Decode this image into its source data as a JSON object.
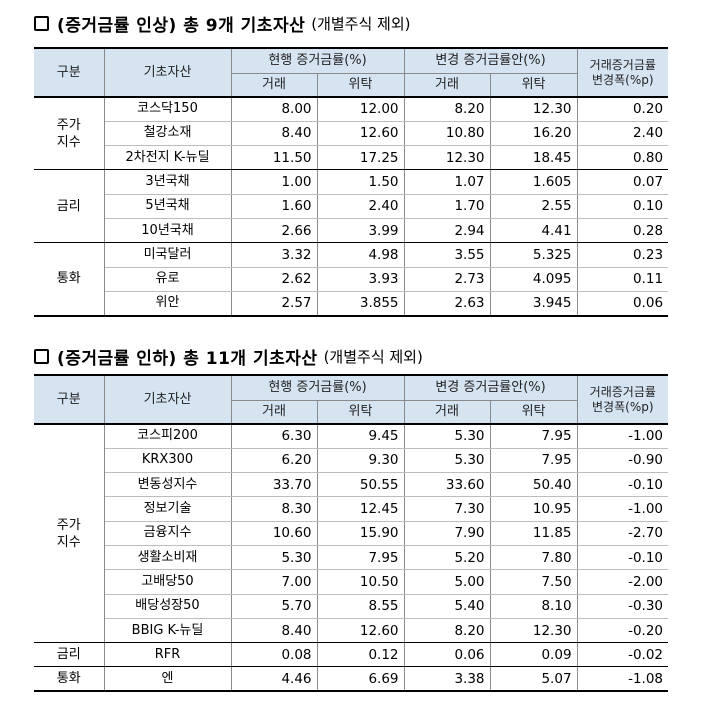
{
  "sections": [
    {
      "title": "(증거금률 인상) 총 9개 기초자산",
      "note": "(개별주식 제외)",
      "header": {
        "group": "구분",
        "asset": "기초자산",
        "current": "현행 증거금률(%)",
        "proposed": "변경 증거금률안(%)",
        "trade": "거래",
        "consign": "위탁",
        "change": "거래증거금률\n변경폭(%p)"
      },
      "groups": [
        {
          "name": "주가\n지수",
          "rows": [
            {
              "asset": "코스닥150",
              "cur_trade": "8.00",
              "cur_consign": "12.00",
              "new_trade": "8.20",
              "new_consign": "12.30",
              "change": "0.20"
            },
            {
              "asset": "철강소재",
              "cur_trade": "8.40",
              "cur_consign": "12.60",
              "new_trade": "10.80",
              "new_consign": "16.20",
              "change": "2.40"
            },
            {
              "asset": "2차전지 K-뉴딜",
              "cur_trade": "11.50",
              "cur_consign": "17.25",
              "new_trade": "12.30",
              "new_consign": "18.45",
              "change": "0.80"
            }
          ]
        },
        {
          "name": "금리",
          "rows": [
            {
              "asset": "3년국채",
              "cur_trade": "1.00",
              "cur_consign": "1.50",
              "new_trade": "1.07",
              "new_consign": "1.605",
              "change": "0.07"
            },
            {
              "asset": "5년국채",
              "cur_trade": "1.60",
              "cur_consign": "2.40",
              "new_trade": "1.70",
              "new_consign": "2.55",
              "change": "0.10"
            },
            {
              "asset": "10년국채",
              "cur_trade": "2.66",
              "cur_consign": "3.99",
              "new_trade": "2.94",
              "new_consign": "4.41",
              "change": "0.28"
            }
          ]
        },
        {
          "name": "통화",
          "rows": [
            {
              "asset": "미국달러",
              "cur_trade": "3.32",
              "cur_consign": "4.98",
              "new_trade": "3.55",
              "new_consign": "5.325",
              "change": "0.23"
            },
            {
              "asset": "유로",
              "cur_trade": "2.62",
              "cur_consign": "3.93",
              "new_trade": "2.73",
              "new_consign": "4.095",
              "change": "0.11"
            },
            {
              "asset": "위안",
              "cur_trade": "2.57",
              "cur_consign": "3.855",
              "new_trade": "2.63",
              "new_consign": "3.945",
              "change": "0.06"
            }
          ]
        }
      ]
    },
    {
      "title": "(증거금률 인하) 총 11개 기초자산",
      "note": "(개별주식 제외)",
      "header": {
        "group": "구분",
        "asset": "기초자산",
        "current": "현행 증거금률(%)",
        "proposed": "변경 증거금률안(%)",
        "trade": "거래",
        "consign": "위탁",
        "change": "거래증거금률\n변경폭(%p)"
      },
      "groups": [
        {
          "name": "주가\n지수",
          "rows": [
            {
              "asset": "코스피200",
              "cur_trade": "6.30",
              "cur_consign": "9.45",
              "new_trade": "5.30",
              "new_consign": "7.95",
              "change": "-1.00"
            },
            {
              "asset": "KRX300",
              "cur_trade": "6.20",
              "cur_consign": "9.30",
              "new_trade": "5.30",
              "new_consign": "7.95",
              "change": "-0.90"
            },
            {
              "asset": "변동성지수",
              "cur_trade": "33.70",
              "cur_consign": "50.55",
              "new_trade": "33.60",
              "new_consign": "50.40",
              "change": "-0.10"
            },
            {
              "asset": "정보기술",
              "cur_trade": "8.30",
              "cur_consign": "12.45",
              "new_trade": "7.30",
              "new_consign": "10.95",
              "change": "-1.00"
            },
            {
              "asset": "금융지수",
              "cur_trade": "10.60",
              "cur_consign": "15.90",
              "new_trade": "7.90",
              "new_consign": "11.85",
              "change": "-2.70"
            },
            {
              "asset": "생활소비재",
              "cur_trade": "5.30",
              "cur_consign": "7.95",
              "new_trade": "5.20",
              "new_consign": "7.80",
              "change": "-0.10"
            },
            {
              "asset": "고배당50",
              "cur_trade": "7.00",
              "cur_consign": "10.50",
              "new_trade": "5.00",
              "new_consign": "7.50",
              "change": "-2.00"
            },
            {
              "asset": "배당성장50",
              "cur_trade": "5.70",
              "cur_consign": "8.55",
              "new_trade": "5.40",
              "new_consign": "8.10",
              "change": "-0.30"
            },
            {
              "asset": "BBIG K-뉴딜",
              "cur_trade": "8.40",
              "cur_consign": "12.60",
              "new_trade": "8.20",
              "new_consign": "12.30",
              "change": "-0.20"
            }
          ]
        },
        {
          "name": "금리",
          "rows": [
            {
              "asset": "RFR",
              "cur_trade": "0.08",
              "cur_consign": "0.12",
              "new_trade": "0.06",
              "new_consign": "0.09",
              "change": "-0.02"
            }
          ]
        },
        {
          "name": "통화",
          "rows": [
            {
              "asset": "엔",
              "cur_trade": "4.46",
              "cur_consign": "6.69",
              "new_trade": "3.38",
              "new_consign": "5.07",
              "change": "-1.08"
            }
          ]
        }
      ]
    }
  ]
}
